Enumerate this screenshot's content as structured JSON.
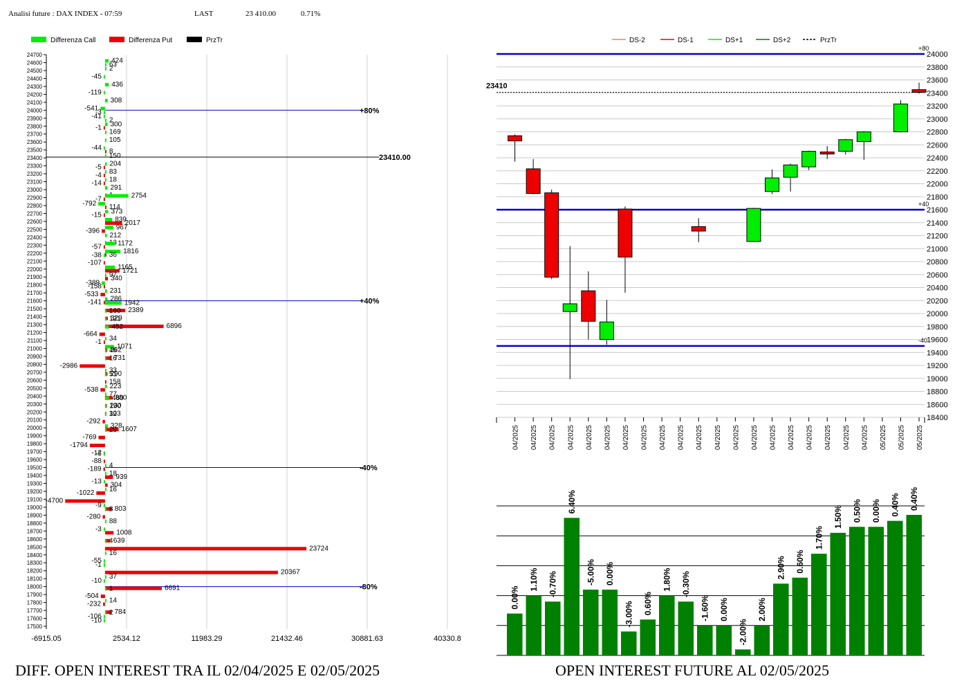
{
  "header": {
    "title": "Analisi future : DAX INDEX - 07:59",
    "last_label": "LAST",
    "last_value": "23 410.00",
    "change": "0.71%"
  },
  "captions": {
    "left": "DIFF. OPEN INTEREST TRA IL 02/04/2025 E 02/05/2025",
    "right": "OPEN INTEREST FUTURE AL 02/05/2025"
  },
  "colors": {
    "call": "#00ee00",
    "put": "#ee0000",
    "price": "#000000",
    "level": "#0000cc",
    "oi_bar": "#008000"
  },
  "chart_data": [
    {
      "type": "bar",
      "orientation": "horizontal",
      "legend": [
        "Differenza Call",
        "Differenza Put",
        "PrzTr"
      ],
      "x_ticks": [
        "-6915.05",
        "2534.12",
        "11983.29",
        "21432.46",
        "30881.63",
        "40330.8"
      ],
      "xlim": [
        -6915.05,
        40330.8
      ],
      "strikes": [
        24700,
        24600,
        24500,
        24400,
        24300,
        24200,
        24100,
        24000,
        23900,
        23800,
        23700,
        23600,
        23500,
        23400,
        23300,
        23200,
        23100,
        23000,
        22900,
        22800,
        22700,
        22600,
        22500,
        22400,
        22300,
        22200,
        22100,
        22000,
        21900,
        21800,
        21700,
        21600,
        21500,
        21400,
        21300,
        21200,
        21100,
        21000,
        20900,
        20800,
        20700,
        20600,
        20500,
        20400,
        20300,
        20200,
        20100,
        20000,
        19900,
        19800,
        19700,
        19600,
        19500,
        19400,
        19300,
        19200,
        19100,
        19000,
        18900,
        18800,
        18700,
        18600,
        18500,
        18400,
        18300,
        18200,
        18100,
        18000,
        17900,
        17800,
        17700,
        17600,
        17500
      ],
      "bars": [
        {
          "strike": 24600,
          "series": "call",
          "value": 424
        },
        {
          "strike": 24550,
          "series": "call",
          "value": 63
        },
        {
          "strike": 24500,
          "series": "call",
          "value": 2
        },
        {
          "strike": 24400,
          "series": "call",
          "value": -45
        },
        {
          "strike": 24300,
          "series": "call",
          "value": 436
        },
        {
          "strike": 24200,
          "series": "call",
          "value": -119
        },
        {
          "strike": 24100,
          "series": "call",
          "value": 308
        },
        {
          "strike": 24000,
          "series": "call",
          "value": -541
        },
        {
          "strike": 23950,
          "series": "call",
          "value": -3
        },
        {
          "strike": 23900,
          "series": "call",
          "value": -41
        },
        {
          "strike": 23850,
          "series": "call",
          "value": 2
        },
        {
          "strike": 23800,
          "series": "call",
          "value": 300
        },
        {
          "strike": 23800,
          "series": "put",
          "value": -1
        },
        {
          "strike": 23700,
          "series": "call",
          "value": 169
        },
        {
          "strike": 23600,
          "series": "call",
          "value": 105
        },
        {
          "strike": 23500,
          "series": "call",
          "value": -44
        },
        {
          "strike": 23500,
          "series": "put",
          "value": 8
        },
        {
          "strike": 23400,
          "series": "call",
          "value": 150
        },
        {
          "strike": 23300,
          "series": "call",
          "value": 204
        },
        {
          "strike": 23300,
          "series": "put",
          "value": -5
        },
        {
          "strike": 23200,
          "series": "call",
          "value": 83
        },
        {
          "strike": 23200,
          "series": "put",
          "value": -4
        },
        {
          "strike": 23100,
          "series": "call",
          "value": 18
        },
        {
          "strike": 23100,
          "series": "put",
          "value": -14
        },
        {
          "strike": 23000,
          "series": "call",
          "value": 291
        },
        {
          "strike": 22950,
          "series": "put",
          "value": 1
        },
        {
          "strike": 22900,
          "series": "call",
          "value": 2754
        },
        {
          "strike": 22900,
          "series": "put",
          "value": -7
        },
        {
          "strike": 22800,
          "series": "call",
          "value": -792
        },
        {
          "strike": 22800,
          "series": "put",
          "value": 114
        },
        {
          "strike": 22700,
          "series": "call",
          "value": 373
        },
        {
          "strike": 22700,
          "series": "put",
          "value": -15
        },
        {
          "strike": 22600,
          "series": "call",
          "value": 839
        },
        {
          "strike": 22600,
          "series": "put",
          "value": 2017
        },
        {
          "strike": 22500,
          "series": "call",
          "value": 967
        },
        {
          "strike": 22500,
          "series": "put",
          "value": -396
        },
        {
          "strike": 22400,
          "series": "call",
          "value": 212
        },
        {
          "strike": 22350,
          "series": "put",
          "value": 13
        },
        {
          "strike": 22300,
          "series": "call",
          "value": 1172
        },
        {
          "strike": 22300,
          "series": "put",
          "value": -57
        },
        {
          "strike": 22200,
          "series": "call",
          "value": 1816
        },
        {
          "strike": 22200,
          "series": "put",
          "value": 36
        },
        {
          "strike": 22150,
          "series": "call",
          "value": -38
        },
        {
          "strike": 22100,
          "series": "put",
          "value": -107
        },
        {
          "strike": 22000,
          "series": "call",
          "value": 1165
        },
        {
          "strike": 22000,
          "series": "put",
          "value": 1721
        },
        {
          "strike": 21900,
          "series": "call",
          "value": 97
        },
        {
          "strike": 21900,
          "series": "put",
          "value": 340
        },
        {
          "strike": 21800,
          "series": "call",
          "value": -389
        },
        {
          "strike": 21800,
          "series": "put",
          "value": -158
        },
        {
          "strike": 21700,
          "series": "call",
          "value": 231
        },
        {
          "strike": 21700,
          "series": "put",
          "value": -533
        },
        {
          "strike": 21600,
          "series": "call",
          "value": 286
        },
        {
          "strike": 21600,
          "series": "put",
          "value": -141
        },
        {
          "strike": 21550,
          "series": "call",
          "value": 1942
        },
        {
          "strike": 21500,
          "series": "put",
          "value": 2389
        },
        {
          "strike": 21450,
          "series": "call",
          "value": 160
        },
        {
          "strike": 21400,
          "series": "put",
          "value": 329
        },
        {
          "strike": 21350,
          "series": "call",
          "value": 121
        },
        {
          "strike": 21300,
          "series": "put",
          "value": 6896
        },
        {
          "strike": 21250,
          "series": "call",
          "value": 452
        },
        {
          "strike": 21200,
          "series": "put",
          "value": -664
        },
        {
          "strike": 21100,
          "series": "call",
          "value": 34
        },
        {
          "strike": 21100,
          "series": "put",
          "value": -1
        },
        {
          "strike": 21000,
          "series": "call",
          "value": 1071
        },
        {
          "strike": 21000,
          "series": "put",
          "value": 262
        },
        {
          "strike": 20950,
          "series": "call",
          "value": 46
        },
        {
          "strike": 20900,
          "series": "put",
          "value": 731
        },
        {
          "strike": 20850,
          "series": "call",
          "value": 16
        },
        {
          "strike": 20800,
          "series": "put",
          "value": -2986
        },
        {
          "strike": 20700,
          "series": "call",
          "value": 33
        },
        {
          "strike": 20700,
          "series": "put",
          "value": 290
        },
        {
          "strike": 20650,
          "series": "call",
          "value": 51
        },
        {
          "strike": 20600,
          "series": "put",
          "value": 158
        },
        {
          "strike": 20500,
          "series": "call",
          "value": 223
        },
        {
          "strike": 20500,
          "series": "put",
          "value": -538
        },
        {
          "strike": 20400,
          "series": "call",
          "value": 77
        },
        {
          "strike": 20400,
          "series": "put",
          "value": 880
        },
        {
          "strike": 20350,
          "series": "call",
          "value": 480
        },
        {
          "strike": 20300,
          "series": "put",
          "value": 230
        },
        {
          "strike": 20250,
          "series": "call",
          "value": 190
        },
        {
          "strike": 20200,
          "series": "put",
          "value": 103
        },
        {
          "strike": 20150,
          "series": "call",
          "value": 32
        },
        {
          "strike": 20100,
          "series": "put",
          "value": -292
        },
        {
          "strike": 20000,
          "series": "call",
          "value": 328
        },
        {
          "strike": 20000,
          "series": "put",
          "value": 1607
        },
        {
          "strike": 19950,
          "series": "call",
          "value": 29
        },
        {
          "strike": 19900,
          "series": "put",
          "value": -769
        },
        {
          "strike": 19800,
          "series": "put",
          "value": -1794
        },
        {
          "strike": 19700,
          "series": "put",
          "value": -17
        },
        {
          "strike": 19650,
          "series": "call",
          "value": -6
        },
        {
          "strike": 19600,
          "series": "put",
          "value": -88
        },
        {
          "strike": 19500,
          "series": "call",
          "value": 4
        },
        {
          "strike": 19500,
          "series": "put",
          "value": -189
        },
        {
          "strike": 19400,
          "series": "call",
          "value": 18
        },
        {
          "strike": 19400,
          "series": "put",
          "value": 939
        },
        {
          "strike": 19300,
          "series": "call",
          "value": -13
        },
        {
          "strike": 19300,
          "series": "put",
          "value": 304
        },
        {
          "strike": 19200,
          "series": "call",
          "value": 16
        },
        {
          "strike": 19200,
          "series": "put",
          "value": -1022
        },
        {
          "strike": 19100,
          "series": "put",
          "value": -4700
        },
        {
          "strike": 19000,
          "series": "call",
          "value": -9
        },
        {
          "strike": 19000,
          "series": "put",
          "value": 803
        },
        {
          "strike": 18950,
          "series": "call",
          "value": 8
        },
        {
          "strike": 18900,
          "series": "put",
          "value": -280
        },
        {
          "strike": 18800,
          "series": "call",
          "value": 88
        },
        {
          "strike": 18700,
          "series": "call",
          "value": -3
        },
        {
          "strike": 18700,
          "series": "put",
          "value": 1008
        },
        {
          "strike": 18600,
          "series": "put",
          "value": 639
        },
        {
          "strike": 18550,
          "series": "call",
          "value": 4
        },
        {
          "strike": 18500,
          "series": "put",
          "value": 23724
        },
        {
          "strike": 18400,
          "series": "call",
          "value": 16
        },
        {
          "strike": 18300,
          "series": "call",
          "value": -55
        },
        {
          "strike": 18250,
          "series": "call",
          "value": -1
        },
        {
          "strike": 18200,
          "series": "put",
          "value": 20367
        },
        {
          "strike": 18100,
          "series": "call",
          "value": 37
        },
        {
          "strike": 18050,
          "series": "call",
          "value": -10
        },
        {
          "strike": 18000,
          "series": "put",
          "value": 6691
        },
        {
          "strike": 17950,
          "series": "call",
          "value": 1
        },
        {
          "strike": 17900,
          "series": "put",
          "value": -504
        },
        {
          "strike": 17800,
          "series": "call",
          "value": 14
        },
        {
          "strike": 17800,
          "series": "put",
          "value": -232
        },
        {
          "strike": 17700,
          "series": "put",
          "value": 784
        },
        {
          "strike": 17650,
          "series": "call",
          "value": 2
        },
        {
          "strike": 17600,
          "series": "call",
          "value": -106
        },
        {
          "strike": 17550,
          "series": "call",
          "value": -10
        }
      ],
      "levels": [
        {
          "strike": 24000,
          "label": "+80%"
        },
        {
          "strike": 21600,
          "label": "+40%"
        },
        {
          "strike": 19500,
          "label": "-40%"
        },
        {
          "strike": 18000,
          "label": "-80%"
        }
      ],
      "price": {
        "strike": 23410,
        "label": "23410.00"
      }
    },
    {
      "type": "candlestick",
      "legend": [
        "DS-2",
        "DS-1",
        "DS+1",
        "DS+2",
        "PrzTr"
      ],
      "legend_colors": [
        "#f08060",
        "#ee0000",
        "#00ee00",
        "#008000",
        "#000000"
      ],
      "ylim": [
        18400,
        24000
      ],
      "y_ticks": [
        24000,
        23800,
        23600,
        23400,
        23200,
        23000,
        22800,
        22600,
        22400,
        22200,
        22000,
        21800,
        21600,
        21400,
        21200,
        21000,
        20800,
        20600,
        20400,
        20200,
        20000,
        19800,
        19600,
        19400,
        19200,
        19000,
        18800,
        18600,
        18400
      ],
      "dates": [
        "02/04/2025",
        "03/04/2025",
        "04/04/2025",
        "07/04/2025",
        "08/04/2025",
        "09/04/2025",
        "10/04/2025",
        "11/04/2025",
        "14/04/2025",
        "15/04/2025",
        "16/04/2025",
        "18/04/2025",
        "21/04/2025",
        "22/04/2025",
        "23/04/2025",
        "24/04/2025",
        "25/04/2025",
        "28/04/2025",
        "29/04/2025",
        "30/04/2025",
        "01/05/2025",
        "02/05/2025",
        "05/05/2025"
      ],
      "candles": [
        {
          "date": "02/04/2025",
          "open": 22740,
          "close": 22660,
          "high": 22760,
          "low": 22340
        },
        {
          "date": "03/04/2025",
          "open": 22230,
          "close": 21850,
          "high": 22380,
          "low": 21840
        },
        {
          "date": "04/04/2025",
          "open": 21860,
          "close": 20560,
          "high": 21910,
          "low": 20530
        },
        {
          "date": "07/04/2025",
          "open": 20030,
          "close": 20150,
          "high": 21040,
          "low": 18990
        },
        {
          "date": "08/04/2025",
          "open": 20350,
          "close": 19880,
          "high": 20650,
          "low": 19600
        },
        {
          "date": "09/04/2025",
          "open": 19600,
          "close": 19870,
          "high": 20210,
          "low": 19520
        },
        {
          "date": "10/04/2025",
          "open": 21610,
          "close": 20870,
          "high": 21650,
          "low": 20320
        },
        {
          "date": "16/04/2025",
          "open": 21340,
          "close": 21270,
          "high": 21470,
          "low": 21100
        },
        {
          "date": "22/04/2025",
          "open": 21110,
          "close": 21620,
          "high": 21630,
          "low": 21100
        },
        {
          "date": "23/04/2025",
          "open": 21880,
          "close": 22090,
          "high": 22220,
          "low": 21840
        },
        {
          "date": "24/04/2025",
          "open": 22100,
          "close": 22290,
          "high": 22310,
          "low": 21880
        },
        {
          "date": "25/04/2025",
          "open": 22260,
          "close": 22500,
          "high": 22510,
          "low": 22210
        },
        {
          "date": "28/04/2025",
          "open": 22490,
          "close": 22460,
          "high": 22580,
          "low": 22380
        },
        {
          "date": "29/04/2025",
          "open": 22500,
          "close": 22680,
          "high": 22690,
          "low": 22450
        },
        {
          "date": "30/04/2025",
          "open": 22650,
          "close": 22800,
          "high": 22810,
          "low": 22370
        },
        {
          "date": "02/05/2025",
          "open": 22800,
          "close": 23230,
          "high": 23290,
          "low": 22790
        },
        {
          "date": "05/05/2025",
          "open": 23450,
          "close": 23410,
          "high": 23560,
          "low": 23390
        }
      ],
      "levels": [
        {
          "value": 24000,
          "label": "+80"
        },
        {
          "value": 21600,
          "label": "+40"
        },
        {
          "value": 19500,
          "label": "-40"
        }
      ],
      "price": {
        "value": 23410,
        "label": "23410"
      }
    },
    {
      "type": "bar",
      "title": "",
      "values": [
        7,
        10,
        9,
        23,
        11,
        11,
        4,
        6,
        10,
        9,
        5,
        5,
        1,
        5,
        12,
        13,
        17,
        20.5,
        21.5,
        21.5,
        22.5,
        23.5
      ],
      "labels": [
        "0.00%",
        "1.10%",
        "-0.70%",
        "6.40%",
        "-5.00%",
        "0.00%",
        "-3.00%",
        "0.60%",
        "1.80%",
        "-0.30%",
        "-1.60%",
        "0.00%",
        "-2.00%",
        "2.00%",
        "2.90%",
        "0.60%",
        "1.70%",
        "1.50%",
        "0.50%",
        "0.00%",
        "0.40%",
        "0.40%"
      ]
    }
  ]
}
